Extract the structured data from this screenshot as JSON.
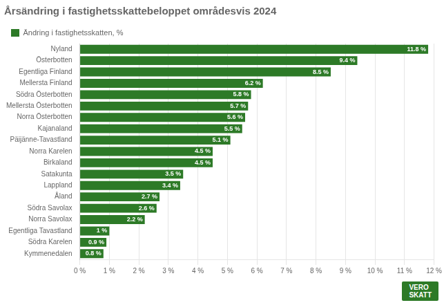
{
  "chart_data": {
    "type": "bar",
    "orientation": "horizontal",
    "title": "Årsändring i fastighetsskattebeloppet områdesvis 2024",
    "categories": [
      "Kymmenedalen",
      "Södra Karelen",
      "Egentliga Tavastland",
      "Norra Savolax",
      "Södra Savolax",
      "Åland",
      "Lappland",
      "Satakunta",
      "Birkaland",
      "Norra Karelen",
      "Päijänne-Tavastland",
      "Kajanaland",
      "Norra Österbotten",
      "Mellersta Österbotten",
      "Södra Österbotten",
      "Mellersta Finland",
      "Egentliga Finland",
      "Österbotten",
      "Nyland"
    ],
    "series": [
      {
        "name": "Ändring i fastighetsskatten, %",
        "color": "#2d7a27",
        "values": [
          0.8,
          0.9,
          1.0,
          2.2,
          2.6,
          2.7,
          3.4,
          3.5,
          4.5,
          4.5,
          5.1,
          5.5,
          5.6,
          5.7,
          5.8,
          6.2,
          8.5,
          9.4,
          11.8
        ],
        "value_labels": [
          "0.8 %",
          "0.9 %",
          "1 %",
          "2.2 %",
          "2.6 %",
          "2.7 %",
          "3.4 %",
          "3.5 %",
          "4.5 %",
          "4.5 %",
          "5.1 %",
          "5.5 %",
          "5.6 %",
          "5.7 %",
          "5.8 %",
          "6.2 %",
          "8.5 %",
          "9.4 %",
          "11.8 %"
        ]
      }
    ],
    "data_labels": true,
    "xlim": [
      0,
      12
    ],
    "xticks": [
      {
        "value": 0,
        "label": "0 %"
      },
      {
        "value": 1,
        "label": "1 %"
      },
      {
        "value": 2,
        "label": "2 %"
      },
      {
        "value": 3,
        "label": "3 %"
      },
      {
        "value": 4,
        "label": "4 %"
      },
      {
        "value": 5,
        "label": "5 %"
      },
      {
        "value": 6,
        "label": "6 %"
      },
      {
        "value": 7,
        "label": "7 %"
      },
      {
        "value": 8,
        "label": "8 %"
      },
      {
        "value": 9,
        "label": "9 %"
      },
      {
        "value": 10,
        "label": "10 %"
      },
      {
        "value": 11,
        "label": "11 %"
      },
      {
        "value": 12,
        "label": "12 %"
      }
    ],
    "grid": true,
    "legend": "upper left",
    "annotations": [
      "VERO\nSKATT"
    ]
  }
}
